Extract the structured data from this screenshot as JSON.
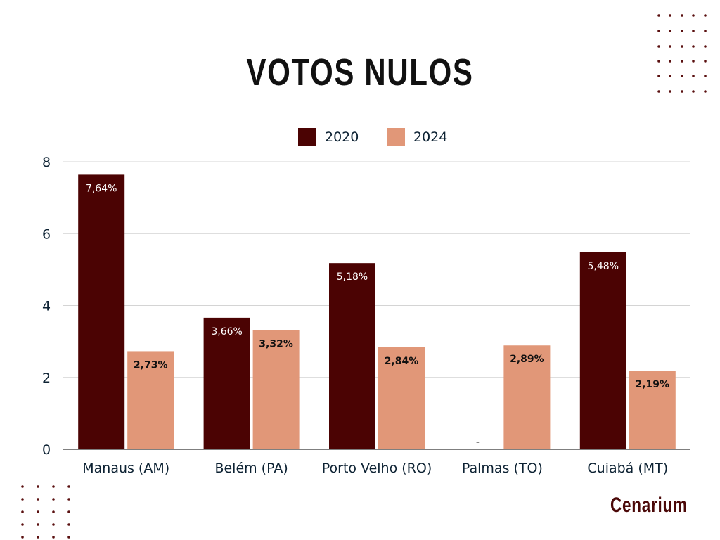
{
  "chart_data": {
    "type": "bar",
    "title": "VOTOS NULOS",
    "categories": [
      "Manaus (AM)",
      "Belém (PA)",
      "Porto Velho (RO)",
      "Palmas (TO)",
      "Cuiabá (MT)"
    ],
    "series": [
      {
        "name": "2020",
        "color": "#4b0303",
        "values": [
          7.64,
          3.66,
          5.18,
          null,
          5.48
        ],
        "labels": [
          "7,64%",
          "3,66%",
          "5,18%",
          "-",
          "5,48%"
        ]
      },
      {
        "name": "2024",
        "color": "#e19778",
        "values": [
          2.73,
          3.32,
          2.84,
          2.89,
          2.19
        ],
        "labels": [
          "2,73%",
          "3,32%",
          "2,84%",
          "2,89%",
          "2,19%"
        ]
      }
    ],
    "ylim": [
      0,
      8
    ],
    "yticks": [
      "0",
      "2",
      "4",
      "6",
      "8"
    ],
    "grid": true,
    "legend": "top-center",
    "xlabel": "",
    "ylabel": ""
  },
  "brand": "CENARIUM"
}
